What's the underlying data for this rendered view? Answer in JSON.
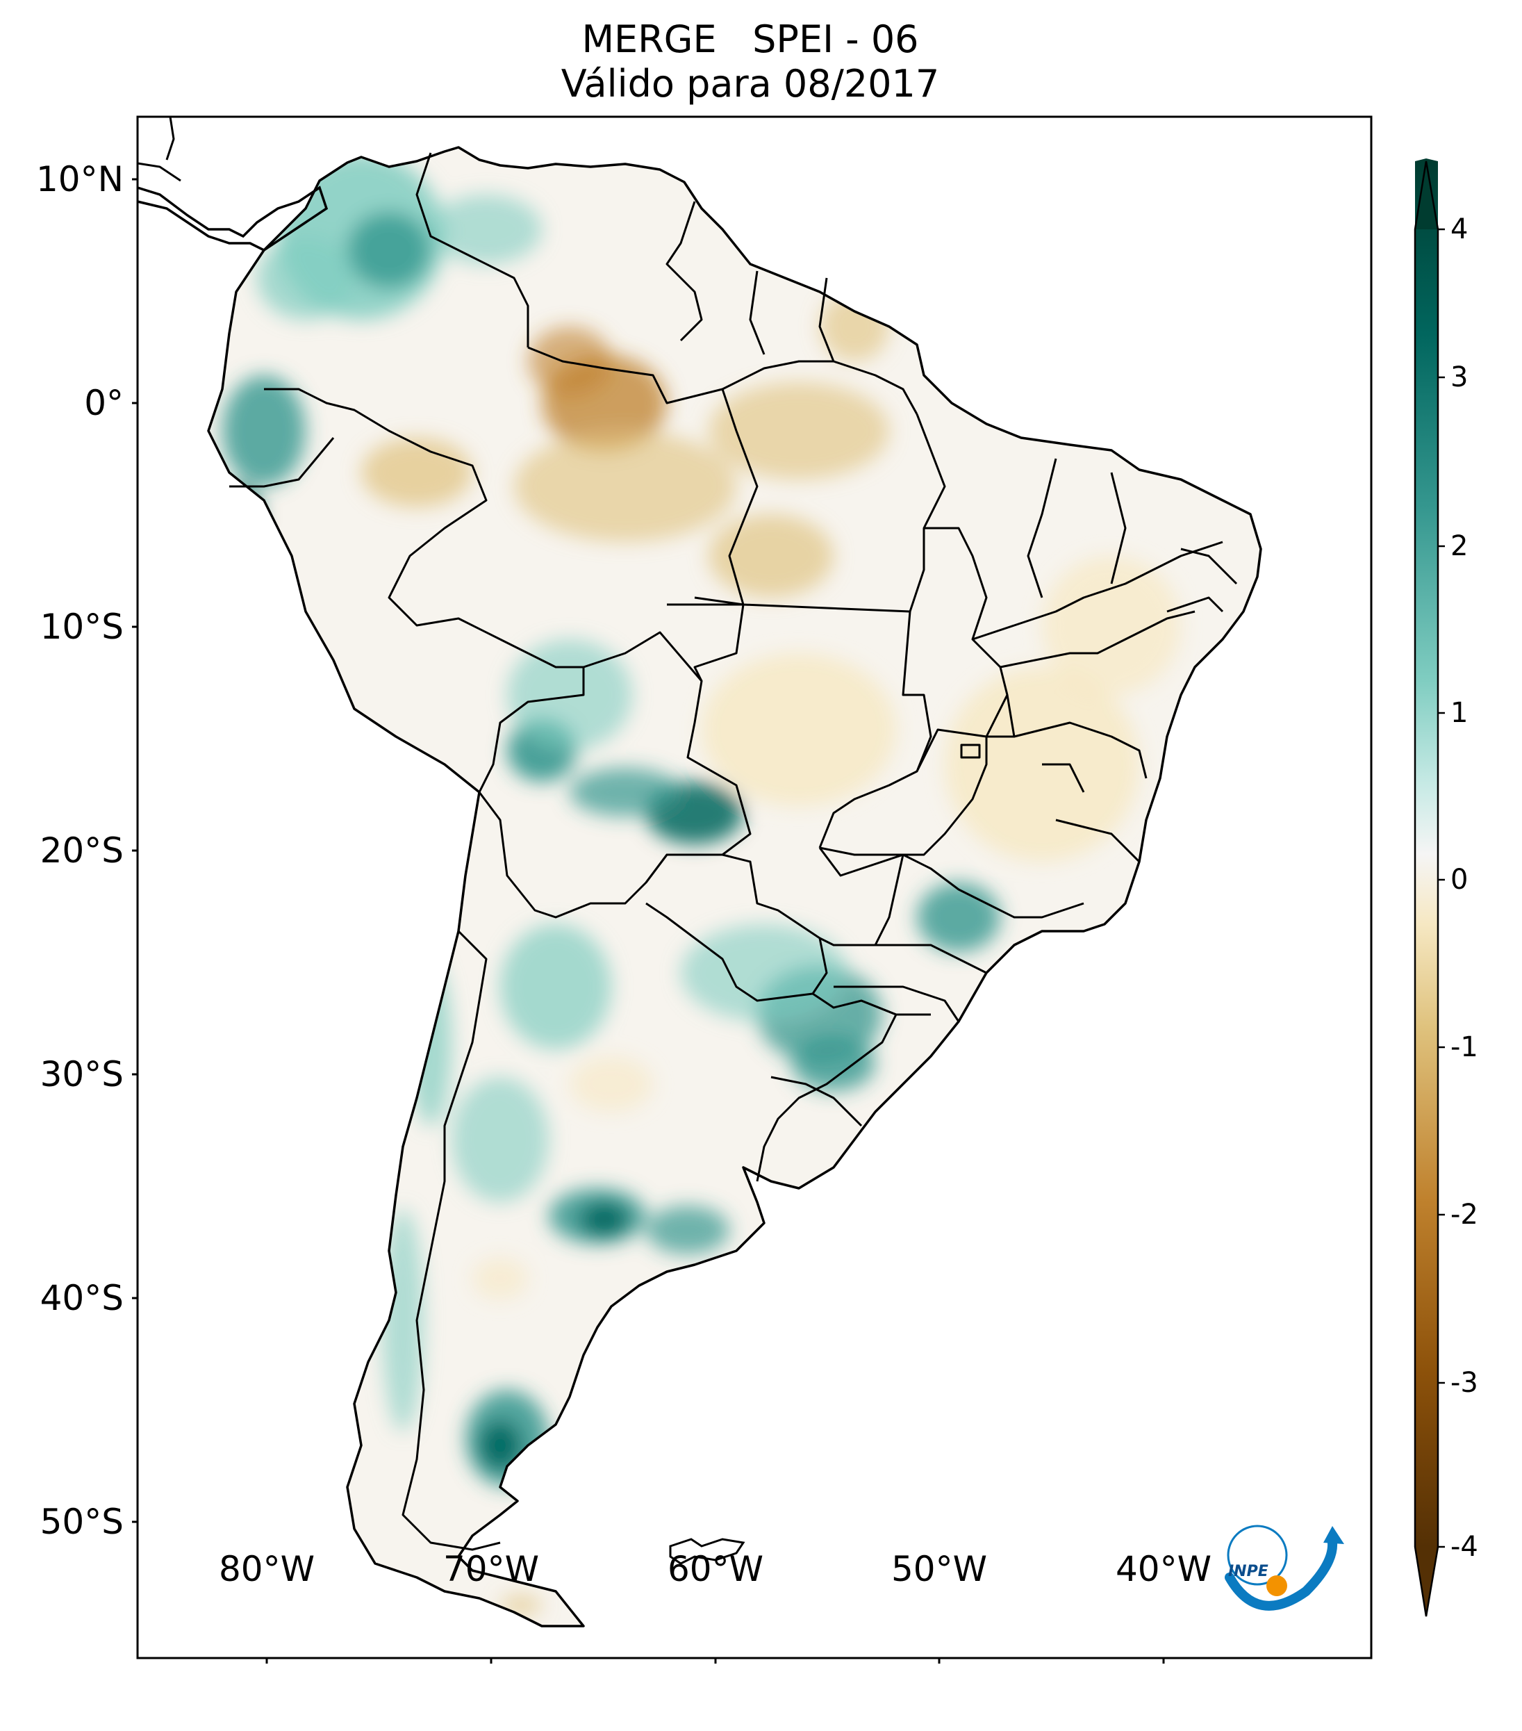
{
  "title": {
    "line1": "MERGE   SPEI - 06",
    "line2": "Válido para 08/2017"
  },
  "map": {
    "lat_ticks": [
      "10°N",
      "0°",
      "10°S",
      "20°S",
      "30°S",
      "40°S",
      "50°S"
    ],
    "lon_ticks": [
      "80°W",
      "70°W",
      "60°W",
      "50°W",
      "40°W"
    ],
    "extent": {
      "lon": [
        -85,
        -30
      ],
      "lat": [
        -56,
        13
      ]
    }
  },
  "colorbar": {
    "ticks": [
      "4",
      "3",
      "2",
      "1",
      "0",
      "-1",
      "-2",
      "-3",
      "-4"
    ],
    "range": [
      -4,
      4
    ],
    "colors": {
      "m4": "#543005",
      "m3": "#8c510a",
      "m2": "#bf812d",
      "m1": "#dfc27d",
      "m05": "#f6e8c3",
      "zero": "#f5f5f5",
      "p05": "#c7eae5",
      "p1": "#80cdc1",
      "p2": "#35978f",
      "p3": "#01665e",
      "p4": "#003c30"
    }
  },
  "logo": {
    "text": "INPE"
  }
}
